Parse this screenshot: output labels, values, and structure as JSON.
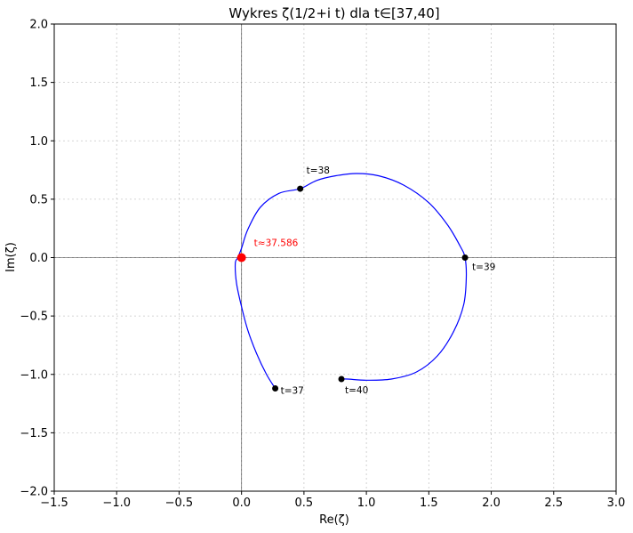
{
  "chart_data": {
    "type": "line",
    "title": "Wykres ζ(1/2+i t) dla t∈[37,40]",
    "xlabel": "Re(ζ)",
    "ylabel": "Im(ζ)",
    "xlim": [
      -1.5,
      3.0
    ],
    "ylim": [
      -2.0,
      2.0
    ],
    "xticks": [
      -1.5,
      -1.0,
      -0.5,
      0.0,
      0.5,
      1.0,
      1.5,
      2.0,
      2.5,
      3.0
    ],
    "xtick_labels": [
      "−1.5",
      "−1.0",
      "−0.5",
      "0.0",
      "0.5",
      "1.0",
      "1.5",
      "2.0",
      "2.5",
      "3.0"
    ],
    "yticks": [
      -2.0,
      -1.5,
      -1.0,
      -0.5,
      0.0,
      0.5,
      1.0,
      1.5,
      2.0
    ],
    "ytick_labels": [
      "−2.0",
      "−1.5",
      "−1.0",
      "−0.5",
      "0.0",
      "0.5",
      "1.0",
      "1.5",
      "2.0"
    ],
    "grid": true,
    "series": [
      {
        "color": "#0000ff",
        "x": [
          0.27,
          0.2,
          0.12,
          0.05,
          0.0,
          -0.04,
          -0.05,
          -0.03,
          0.0,
          0.05,
          0.15,
          0.3,
          0.47,
          0.6,
          0.75,
          0.92,
          1.1,
          1.3,
          1.5,
          1.65,
          1.75,
          1.79,
          1.8,
          1.78,
          1.7,
          1.57,
          1.4,
          1.2,
          1.0,
          0.85,
          0.79
        ],
        "y": [
          -1.12,
          -1.0,
          -0.82,
          -0.62,
          -0.42,
          -0.22,
          -0.05,
          0.0,
          0.08,
          0.24,
          0.43,
          0.55,
          0.59,
          0.66,
          0.7,
          0.72,
          0.7,
          0.62,
          0.47,
          0.28,
          0.1,
          0.0,
          -0.17,
          -0.4,
          -0.63,
          -0.84,
          -0.98,
          -1.04,
          -1.05,
          -1.04,
          -1.04
        ]
      }
    ],
    "points": [
      {
        "x": 0.27,
        "y": -1.12,
        "label": "t=37",
        "color": "#000000"
      },
      {
        "x": 0.47,
        "y": 0.59,
        "label": "t=38",
        "color": "#000000"
      },
      {
        "x": 1.79,
        "y": 0.0,
        "label": "t=39",
        "color": "#000000"
      },
      {
        "x": 0.8,
        "y": -1.04,
        "label": "t=40",
        "color": "#000000"
      },
      {
        "x": 0.0,
        "y": 0.0,
        "label": "t≈37.586",
        "color": "#ff0000"
      }
    ]
  }
}
